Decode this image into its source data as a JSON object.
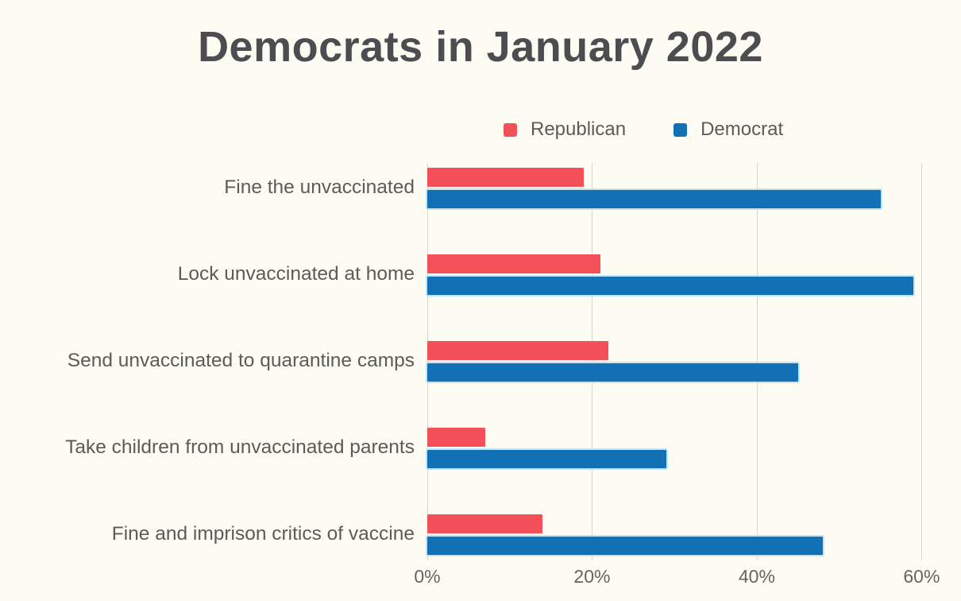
{
  "chart_data": {
    "type": "bar",
    "orientation": "horizontal",
    "title": "Democrats in January 2022",
    "categories": [
      "Fine the unvaccinated",
      "Lock unvaccinated at home",
      "Send unvaccinated to quarantine camps",
      "Take children from unvaccinated parents",
      "Fine and imprison critics of vaccine"
    ],
    "series": [
      {
        "name": "Republican",
        "color": "#f4505a",
        "values": [
          19,
          21,
          22,
          7,
          14
        ]
      },
      {
        "name": "Democrat",
        "color": "#1271b4",
        "values": [
          55,
          59,
          45,
          29,
          48
        ]
      }
    ],
    "x_ticks": [
      "0%",
      "20%",
      "40%",
      "60%"
    ],
    "x_tick_values": [
      0,
      20,
      40,
      60
    ],
    "xlim": [
      0,
      64.3
    ],
    "xlabel": "",
    "ylabel": "",
    "grid": "vertical",
    "legend_position": "top-center"
  },
  "colors": {
    "background": "#fcfcf3",
    "gridline": "#d6d6cf",
    "title_text": "#4d4d51",
    "label_text": "#5c5c56",
    "republican": "#f4505a",
    "democrat": "#1271b4"
  }
}
